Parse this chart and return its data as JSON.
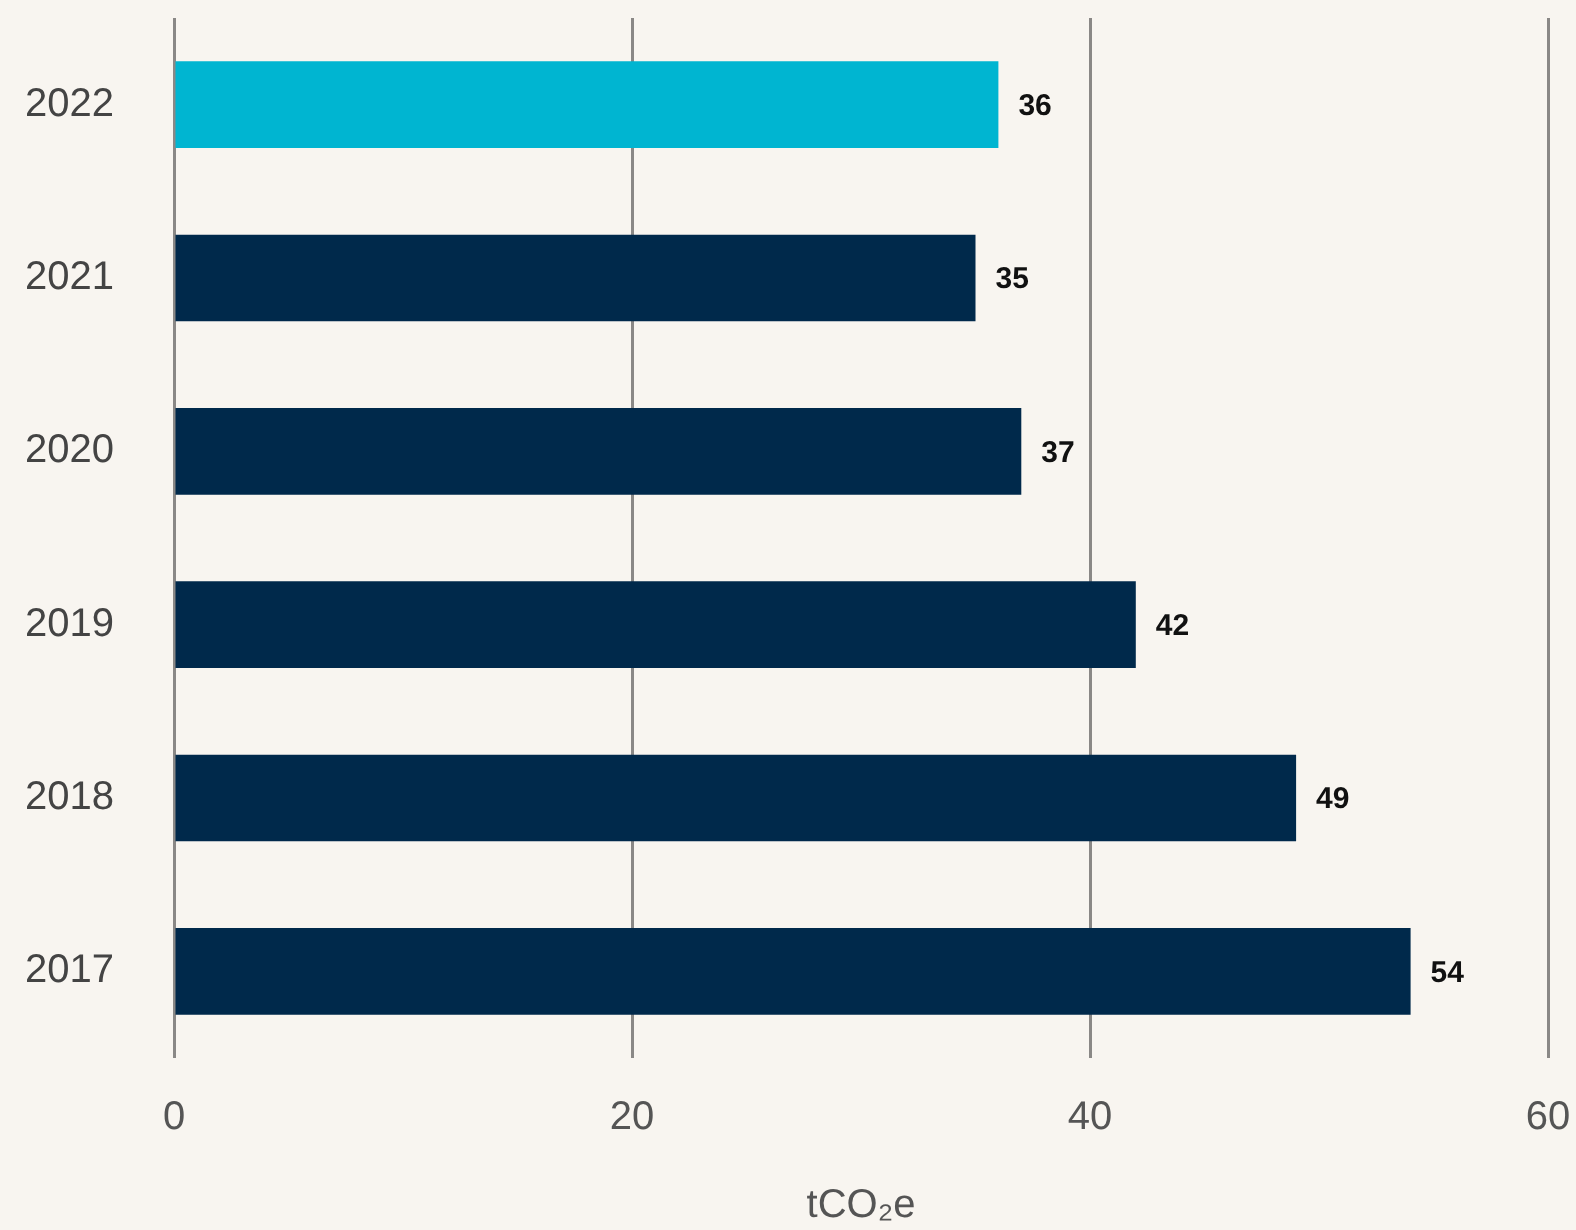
{
  "chart_data": {
    "type": "bar",
    "orientation": "horizontal",
    "categories": [
      "2022",
      "2021",
      "2020",
      "2019",
      "2018",
      "2017"
    ],
    "values": [
      36,
      35,
      37,
      42,
      49,
      54
    ],
    "colors": [
      "#00b5d1",
      "#00294b",
      "#00294b",
      "#00294b",
      "#00294b",
      "#00294b"
    ],
    "xlabel": "tCO₂e",
    "xlim": [
      0,
      60
    ],
    "xticks": [
      0,
      20,
      40,
      60
    ],
    "grid": "x",
    "data_labels": true
  }
}
